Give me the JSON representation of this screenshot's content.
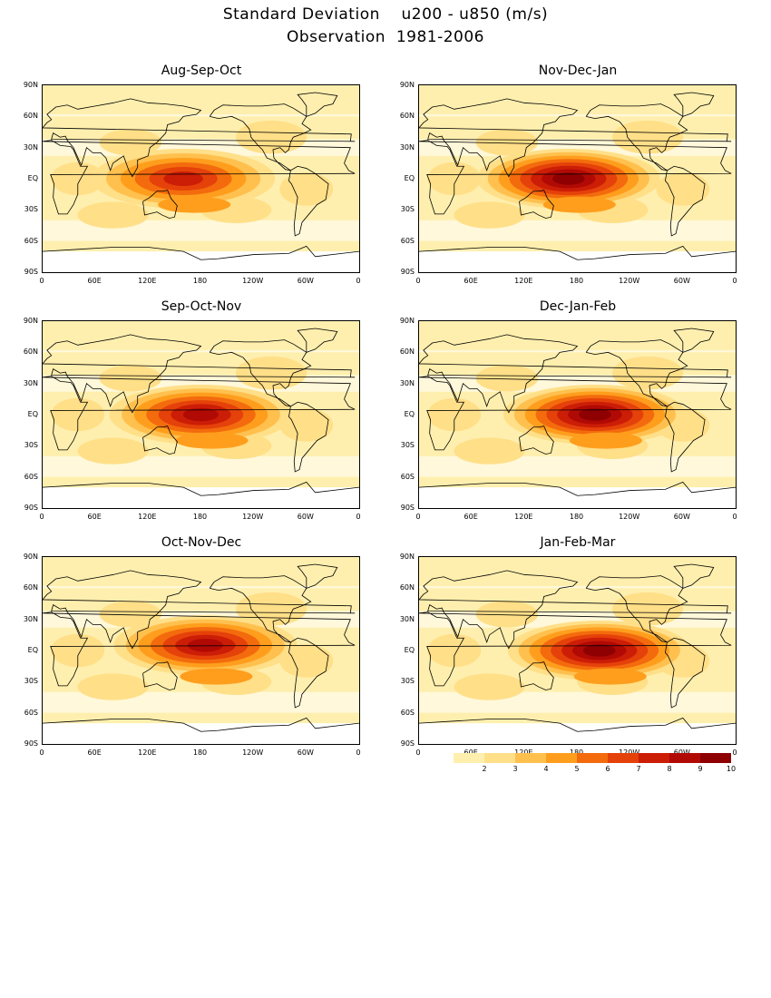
{
  "title": {
    "line1": "Standard Deviation    u200 - u850 (m/s)",
    "line2": "Observation  1981-2006"
  },
  "axes": {
    "y_ticks": [
      "90N",
      "60N",
      "30N",
      "EQ",
      "30S",
      "60S",
      "90S"
    ],
    "x_ticks": [
      "0",
      "60E",
      "120E",
      "180",
      "120W",
      "60W",
      "0"
    ]
  },
  "panels": [
    {
      "title": "Aug-Sep-Oct",
      "hot_center_lon": 160,
      "hot_center_lat": 0,
      "intensity": 7
    },
    {
      "title": "Nov-Dec-Jan",
      "hot_center_lon": 170,
      "hot_center_lat": 0,
      "intensity": 9
    },
    {
      "title": "Sep-Oct-Nov",
      "hot_center_lon": 180,
      "hot_center_lat": 0,
      "intensity": 8
    },
    {
      "title": "Dec-Jan-Feb",
      "hot_center_lon": 200,
      "hot_center_lat": 0,
      "intensity": 9
    },
    {
      "title": "Oct-Nov-Dec",
      "hot_center_lon": 185,
      "hot_center_lat": 5,
      "intensity": 8
    },
    {
      "title": "Jan-Feb-Mar",
      "hot_center_lon": 205,
      "hot_center_lat": 0,
      "intensity": 9
    }
  ],
  "colorbar": {
    "labels": [
      "2",
      "3",
      "4",
      "5",
      "6",
      "7",
      "8",
      "9",
      "10"
    ],
    "colors": [
      "#ffefae",
      "#ffdf88",
      "#ffc04e",
      "#ff9e1d",
      "#f36b0d",
      "#e5410a",
      "#cc1d07",
      "#b10a05",
      "#8e0002"
    ]
  }
}
